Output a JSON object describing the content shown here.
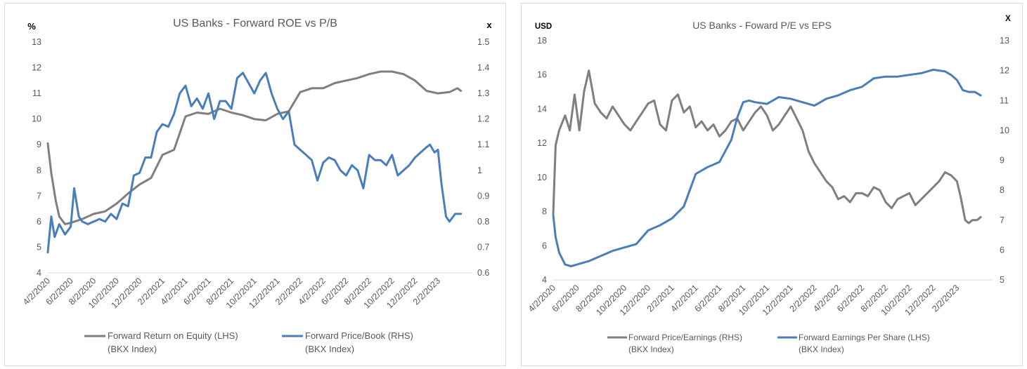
{
  "charts": [
    {
      "title": "US Banks - Forward ROE vs P/B",
      "left_unit": "%",
      "right_unit": "x",
      "left_ticks": [
        "4",
        "5",
        "6",
        "7",
        "8",
        "9",
        "10",
        "11",
        "12",
        "13"
      ],
      "right_ticks": [
        "0.6",
        "0.7",
        "0.8",
        "0.9",
        "1",
        "1.1",
        "1.2",
        "1.3",
        "1.4",
        "1.5"
      ],
      "x_ticks": [
        "4/2/2020",
        "6/2/2020",
        "8/2/2020",
        "10/2/2020",
        "12/2/2020",
        "2/2/2021",
        "4/2/2021",
        "6/2/2021",
        "8/2/2021",
        "10/2/2021",
        "12/2/2021",
        "2/2/2022",
        "4/2/2022",
        "6/2/2022",
        "8/2/2022",
        "10/2/2022",
        "12/2/2022",
        "2/2/2023"
      ],
      "legend": [
        {
          "line1": "Forward Return on Equity (LHS)",
          "line2": "(BKX Index)",
          "color": "#7f7f7f"
        },
        {
          "line1": "Forward Price/Book (RHS)",
          "line2": "(BKX Index)",
          "color": "#4a7ebb"
        }
      ]
    },
    {
      "title": "US Banks - Foward P/E vs EPS",
      "left_unit": "USD",
      "right_unit": "X",
      "left_ticks": [
        "4",
        "6",
        "8",
        "10",
        "12",
        "14",
        "16",
        "18"
      ],
      "right_ticks": [
        "5",
        "6",
        "7",
        "8",
        "9",
        "10",
        "11",
        "12",
        "13"
      ],
      "x_ticks": [
        "4/2/2020",
        "6/2/2020",
        "8/2/2020",
        "10/2/2020",
        "12/2/2020",
        "2/2/2021",
        "4/2/2021",
        "6/2/2021",
        "8/2/2021",
        "10/2/2021",
        "12/2/2021",
        "2/2/2022",
        "4/2/2022",
        "6/2/2022",
        "8/2/2022",
        "10/2/2022",
        "12/2/2022",
        "2/2/2023"
      ],
      "legend": [
        {
          "line1": "Forward Price/Earnings (RHS)",
          "line2": "(BKX Index)",
          "color": "#7f7f7f"
        },
        {
          "line1": "Forward Earnings Per Share (LHS)",
          "line2": "(BKX Index)",
          "color": "#4a7ebb"
        }
      ]
    }
  ],
  "chart_data": [
    {
      "type": "line",
      "title": "US Banks - Forward ROE vs P/B",
      "xlabel": "",
      "ylabel_left": "%",
      "ylabel_right": "x",
      "ylim_left": [
        4,
        13
      ],
      "ylim_right": [
        0.6,
        1.5
      ],
      "x_range": [
        "4/2/2020",
        "4/2023"
      ],
      "series": [
        {
          "name": "Forward Return on Equity (LHS) (BKX Index)",
          "axis": "left",
          "color": "#7f7f7f",
          "x_month": [
            0,
            0.3,
            0.7,
            1,
            1.5,
            2,
            3,
            4,
            5,
            6,
            7,
            8,
            9,
            10,
            11,
            12,
            13,
            14,
            15,
            16,
            17,
            18,
            19,
            20,
            21,
            22,
            23,
            24,
            25,
            26,
            27,
            28,
            29,
            30,
            31,
            32,
            33,
            34,
            35,
            35.7,
            36
          ],
          "values": [
            9.05,
            7.9,
            6.8,
            6.2,
            5.9,
            5.95,
            6.1,
            6.3,
            6.4,
            6.7,
            7.1,
            7.45,
            7.7,
            8.6,
            8.8,
            10.1,
            10.25,
            10.2,
            10.4,
            10.25,
            10.15,
            10.0,
            9.95,
            10.2,
            10.3,
            11.05,
            11.2,
            11.2,
            11.4,
            11.5,
            11.6,
            11.75,
            11.85,
            11.85,
            11.75,
            11.5,
            11.1,
            11.0,
            11.05,
            11.2,
            11.1
          ]
        },
        {
          "name": "Forward Price/Book (RHS) (BKX Index)",
          "axis": "right",
          "color": "#4a7ebb",
          "x_month": [
            0,
            0.3,
            0.6,
            1,
            1.5,
            2,
            2.3,
            2.7,
            3,
            3.5,
            4,
            4.5,
            5,
            5.5,
            6,
            6.5,
            7,
            7.5,
            8,
            8.5,
            9,
            9.5,
            10,
            10.5,
            11,
            11.5,
            12,
            12.5,
            13,
            13.5,
            14,
            14.5,
            15,
            15.5,
            16,
            16.5,
            17,
            17.5,
            18,
            18.5,
            19,
            19.5,
            20,
            20.5,
            21,
            21.5,
            22,
            22.5,
            23,
            23.5,
            24,
            24.5,
            25,
            25.5,
            26,
            26.5,
            27,
            27.5,
            28,
            28.5,
            29,
            29.5,
            30,
            30.5,
            31,
            31.5,
            32,
            32.5,
            33,
            33.3,
            33.7,
            34,
            34.3,
            34.7,
            35,
            35.5,
            36
          ],
          "values": [
            0.68,
            0.82,
            0.74,
            0.79,
            0.75,
            0.78,
            0.93,
            0.82,
            0.8,
            0.79,
            0.8,
            0.81,
            0.8,
            0.83,
            0.81,
            0.87,
            0.86,
            0.98,
            0.99,
            1.05,
            1.05,
            1.15,
            1.18,
            1.17,
            1.22,
            1.3,
            1.33,
            1.25,
            1.28,
            1.24,
            1.3,
            1.2,
            1.27,
            1.27,
            1.24,
            1.36,
            1.38,
            1.34,
            1.3,
            1.35,
            1.38,
            1.3,
            1.24,
            1.2,
            1.23,
            1.1,
            1.08,
            1.06,
            1.04,
            0.96,
            1.03,
            1.05,
            1.04,
            1.0,
            0.98,
            1.02,
            1.0,
            0.93,
            1.06,
            1.04,
            1.04,
            1.02,
            1.06,
            0.98,
            1.0,
            1.02,
            1.05,
            1.07,
            1.09,
            1.1,
            1.07,
            1.08,
            0.95,
            0.82,
            0.8,
            0.83,
            0.83
          ]
        }
      ]
    },
    {
      "type": "line",
      "title": "US Banks - Foward P/E vs EPS",
      "xlabel": "",
      "ylabel_left": "USD",
      "ylabel_right": "X",
      "ylim_left": [
        4,
        18
      ],
      "ylim_right": [
        5,
        13
      ],
      "x_range": [
        "4/2/2020",
        "4/2023"
      ],
      "series": [
        {
          "name": "Forward Price/Earnings (RHS) (BKX Index)",
          "axis": "right",
          "color": "#7f7f7f",
          "x_month": [
            0,
            0.2,
            0.5,
            1,
            1.4,
            1.8,
            2.2,
            2.6,
            3,
            3.5,
            4,
            4.5,
            5,
            5.5,
            6,
            6.5,
            7,
            7.5,
            8,
            8.5,
            9,
            9.5,
            10,
            10.5,
            11,
            11.5,
            12,
            12.5,
            13,
            13.5,
            14,
            14.5,
            15,
            15.5,
            16,
            16.5,
            17,
            17.5,
            18,
            18.5,
            19,
            19.5,
            20,
            20.5,
            21,
            21.5,
            22,
            22.5,
            23,
            23.5,
            24,
            24.5,
            25,
            25.5,
            26,
            26.5,
            27,
            27.5,
            28,
            28.5,
            29,
            29.5,
            30,
            30.5,
            31,
            31.5,
            32,
            32.5,
            33,
            33.5,
            34,
            34.3,
            34.7,
            35,
            35.3,
            35.7,
            36
          ],
          "values": [
            7.2,
            9.5,
            10.0,
            10.5,
            10.0,
            11.2,
            10.0,
            11.3,
            12.0,
            10.9,
            10.6,
            10.4,
            10.8,
            10.5,
            10.2,
            10.0,
            10.3,
            10.6,
            10.9,
            11.0,
            10.2,
            10.0,
            11.0,
            11.2,
            10.6,
            10.8,
            10.1,
            10.3,
            10.0,
            10.2,
            9.8,
            10.0,
            10.3,
            10.4,
            10.0,
            10.3,
            10.6,
            10.8,
            10.5,
            10.0,
            10.2,
            10.5,
            10.8,
            10.4,
            10.0,
            9.3,
            8.9,
            8.6,
            8.3,
            8.1,
            7.7,
            7.8,
            7.6,
            7.9,
            7.9,
            7.8,
            8.1,
            8.0,
            7.6,
            7.4,
            7.7,
            7.8,
            7.9,
            7.5,
            7.7,
            7.9,
            8.1,
            8.3,
            8.6,
            8.5,
            8.3,
            7.8,
            7.0,
            6.9,
            7.0,
            7.0,
            7.1
          ]
        },
        {
          "name": "Forward Earnings Per Share (LHS) (BKX Index)",
          "axis": "left",
          "color": "#4a7ebb",
          "x_month": [
            0,
            0.2,
            0.5,
            1,
            1.5,
            2,
            3,
            4,
            5,
            6,
            7,
            8,
            9,
            10,
            11,
            12,
            13,
            14,
            15,
            15.5,
            16,
            16.5,
            17,
            18,
            19,
            20,
            21,
            22,
            23,
            24,
            25,
            26,
            27,
            28,
            29,
            30,
            31,
            32,
            33,
            33.5,
            34,
            34.5,
            35,
            35.5,
            36
          ],
          "values": [
            7.8,
            6.5,
            5.6,
            4.9,
            4.8,
            4.9,
            5.1,
            5.4,
            5.7,
            5.9,
            6.1,
            6.9,
            7.2,
            7.6,
            8.3,
            10.2,
            10.6,
            10.9,
            12.2,
            13.5,
            14.4,
            14.5,
            14.4,
            14.3,
            14.7,
            14.6,
            14.4,
            14.2,
            14.6,
            14.8,
            15.1,
            15.3,
            15.8,
            15.9,
            15.9,
            16.0,
            16.1,
            16.3,
            16.2,
            16.0,
            15.7,
            15.1,
            15.0,
            15.0,
            14.8
          ]
        }
      ]
    }
  ]
}
